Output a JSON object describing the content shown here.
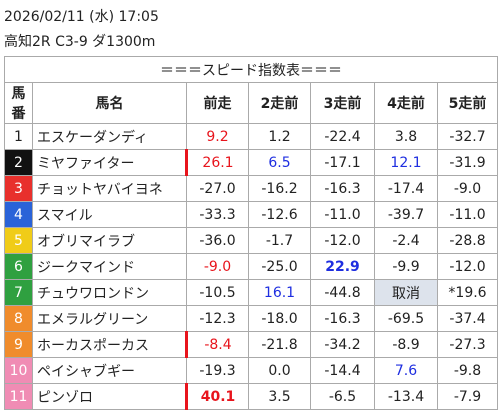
{
  "header": {
    "datetime": "2026/02/11 (水) 17:05",
    "race": "高知2R C3-9 ダ1300m"
  },
  "table": {
    "title": "＝＝＝スピード指数表＝＝＝",
    "columns": [
      "馬番",
      "馬名",
      "前走",
      "2走前",
      "3走前",
      "4走前",
      "5走前"
    ],
    "rows": [
      [
        "1",
        "エスケーダンディ",
        "9.2",
        "1.2",
        "-22.4",
        "3.8",
        "-32.7"
      ],
      [
        "2",
        "ミヤファイター",
        "26.1",
        "6.5",
        "-17.1",
        "12.1",
        "-31.9"
      ],
      [
        "3",
        "チョットヤバイヨネ",
        "-27.0",
        "-16.2",
        "-16.3",
        "-17.4",
        "-9.0"
      ],
      [
        "4",
        "スマイル",
        "-33.3",
        "-12.6",
        "-11.0",
        "-39.7",
        "-11.0"
      ],
      [
        "5",
        "オブリマイラブ",
        "-36.0",
        "-1.7",
        "-12.0",
        "-2.4",
        "-28.8"
      ],
      [
        "6",
        "ジークマインド",
        "-9.0",
        "-25.0",
        "22.9",
        "-9.9",
        "-12.0"
      ],
      [
        "7",
        "チュウワロンドン",
        "-10.5",
        "16.1",
        "-44.8",
        "取消",
        "*19.6"
      ],
      [
        "8",
        "エメラルグリーン",
        "-12.3",
        "-18.0",
        "-16.3",
        "-69.5",
        "-37.4"
      ],
      [
        "9",
        "ホーカスポーカス",
        "-8.4",
        "-21.8",
        "-34.2",
        "-8.9",
        "-27.3"
      ],
      [
        "10",
        "ペイシャブギー",
        "-19.3",
        "0.0",
        "-14.4",
        "7.6",
        "-9.8"
      ],
      [
        "11",
        "ピンゾロ",
        "40.1",
        "3.5",
        "-6.5",
        "-13.4",
        "-7.9"
      ]
    ]
  }
}
